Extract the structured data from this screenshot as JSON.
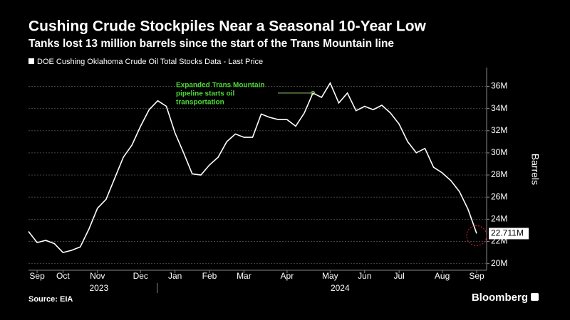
{
  "chart_data": {
    "type": "line",
    "title": "Cushing Crude Stockpiles Near a Seasonal 10-Year Low",
    "subtitle": "Tanks lost 13 million barrels since the start of the Trans Mountain line",
    "y_label": "Barrels",
    "source": "Source: EIA",
    "brand": "Bloomberg",
    "annotation": [
      "Expanded Trans Mountain",
      "pipeline starts oil",
      "transportation"
    ],
    "years": [
      "2023",
      "2024"
    ],
    "categories": [
      null,
      "Sep",
      null,
      null,
      "Oct",
      null,
      null,
      null,
      "Nov",
      null,
      null,
      null,
      null,
      "Dec",
      null,
      null,
      null,
      "Jan",
      null,
      null,
      null,
      "Feb",
      null,
      null,
      null,
      "Mar",
      null,
      null,
      null,
      null,
      "Apr",
      null,
      null,
      null,
      null,
      "May",
      null,
      null,
      null,
      "Jun",
      null,
      null,
      null,
      "Jul",
      null,
      null,
      null,
      null,
      "Aug",
      null,
      null,
      null,
      "Sep"
    ],
    "series": [
      {
        "name": "DOE Cushing Oklahoma Crude Oil Total Stocks Data - Last Price",
        "color": "#ffffff",
        "values": [
          22.9,
          21.9,
          22.1,
          21.8,
          21.0,
          21.2,
          21.5,
          23.1,
          25.0,
          25.8,
          27.7,
          29.6,
          30.7,
          32.4,
          33.9,
          34.7,
          34.2,
          31.8,
          30.0,
          28.1,
          28.0,
          28.9,
          29.6,
          31.0,
          31.7,
          31.4,
          31.4,
          33.5,
          33.2,
          33.0,
          33.0,
          32.4,
          33.6,
          35.4,
          35.0,
          36.3,
          34.5,
          35.4,
          33.8,
          34.2,
          33.9,
          34.3,
          33.6,
          32.6,
          31.0,
          30.0,
          30.4,
          28.7,
          28.2,
          27.5,
          26.5,
          24.9,
          22.711
        ],
        "value_labels": [
          null,
          null,
          null,
          null,
          null,
          null,
          null,
          null,
          null,
          null,
          null,
          null,
          null,
          null,
          null,
          null,
          null,
          null,
          null,
          null,
          null,
          null,
          null,
          null,
          null,
          null,
          null,
          null,
          null,
          null,
          null,
          null,
          null,
          null,
          null,
          null,
          null,
          null,
          null,
          null,
          null,
          null,
          null,
          null,
          null,
          null,
          null,
          null,
          null,
          null,
          null,
          null,
          "22.711M"
        ]
      }
    ],
    "ylim": [
      19.4,
      37.7
    ],
    "yticks": [
      {
        "value": 20,
        "label": "20M"
      },
      {
        "value": 22,
        "label": "22M"
      },
      {
        "value": 24,
        "label": "24M"
      },
      {
        "value": 26,
        "label": "26M"
      },
      {
        "value": 28,
        "label": "28M"
      },
      {
        "value": 30,
        "label": "30M"
      },
      {
        "value": 32,
        "label": "32M"
      },
      {
        "value": 34,
        "label": "34M"
      },
      {
        "value": 36,
        "label": "36M"
      }
    ],
    "grid": true
  }
}
